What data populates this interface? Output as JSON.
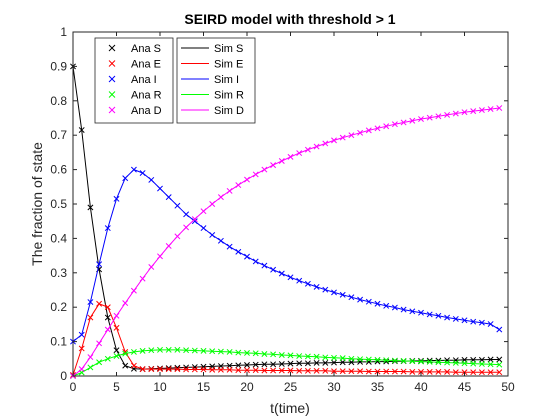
{
  "chart_data": {
    "type": "line",
    "title": "SEIRD model with threshold > 1",
    "xlabel": "t(time)",
    "ylabel": "The fraction of state",
    "xlim": [
      0,
      50
    ],
    "ylim": [
      0,
      1
    ],
    "xticks": [
      0,
      5,
      10,
      15,
      20,
      25,
      30,
      35,
      40,
      45,
      50
    ],
    "yticks": [
      0,
      0.1,
      0.2,
      0.3,
      0.4,
      0.5,
      0.6,
      0.7,
      0.8,
      0.9,
      1
    ],
    "xtick_labels": [
      "0",
      "5",
      "10",
      "15",
      "20",
      "25",
      "30",
      "35",
      "40",
      "45",
      "50"
    ],
    "ytick_labels": [
      "0",
      "0.1",
      "0.2",
      "0.3",
      "0.4",
      "0.5",
      "0.6",
      "0.7",
      "0.8",
      "0.9",
      "1"
    ],
    "grid": false,
    "legend_placement": "top-left",
    "x": [
      0,
      1,
      2,
      3,
      4,
      5,
      6,
      7,
      8,
      9,
      10,
      11,
      12,
      13,
      14,
      15,
      16,
      17,
      18,
      19,
      20,
      21,
      22,
      23,
      24,
      25,
      26,
      27,
      28,
      29,
      30,
      31,
      32,
      33,
      34,
      35,
      36,
      37,
      38,
      39,
      40,
      41,
      42,
      43,
      44,
      45,
      46,
      47,
      48,
      49
    ],
    "series": [
      {
        "name": "S",
        "color": "#000000",
        "values": [
          0.9,
          0.715,
          0.49,
          0.31,
          0.17,
          0.075,
          0.03,
          0.021,
          0.02,
          0.021,
          0.022,
          0.023,
          0.024,
          0.025,
          0.026,
          0.027,
          0.028,
          0.029,
          0.03,
          0.031,
          0.032,
          0.033,
          0.034,
          0.034,
          0.035,
          0.036,
          0.037,
          0.037,
          0.038,
          0.038,
          0.039,
          0.04,
          0.04,
          0.041,
          0.041,
          0.042,
          0.042,
          0.043,
          0.043,
          0.044,
          0.044,
          0.045,
          0.045,
          0.046,
          0.046,
          0.047,
          0.047,
          0.047,
          0.048,
          0.048
        ]
      },
      {
        "name": "E",
        "color": "#ff0000",
        "values": [
          0.003,
          0.08,
          0.17,
          0.21,
          0.2,
          0.14,
          0.07,
          0.03,
          0.02,
          0.02,
          0.02,
          0.02,
          0.02,
          0.019,
          0.019,
          0.019,
          0.018,
          0.018,
          0.018,
          0.017,
          0.017,
          0.017,
          0.016,
          0.016,
          0.016,
          0.016,
          0.015,
          0.015,
          0.015,
          0.015,
          0.014,
          0.014,
          0.014,
          0.014,
          0.013,
          0.013,
          0.013,
          0.013,
          0.013,
          0.012,
          0.012,
          0.012,
          0.012,
          0.012,
          0.011,
          0.011,
          0.011,
          0.011,
          0.011,
          0.011
        ]
      },
      {
        "name": "I",
        "color": "#0000ff",
        "values": [
          0.1,
          0.12,
          0.215,
          0.325,
          0.43,
          0.515,
          0.575,
          0.6,
          0.59,
          0.57,
          0.545,
          0.52,
          0.495,
          0.47,
          0.45,
          0.43,
          0.41,
          0.393,
          0.376,
          0.361,
          0.347,
          0.333,
          0.321,
          0.309,
          0.298,
          0.287,
          0.277,
          0.268,
          0.259,
          0.251,
          0.243,
          0.236,
          0.229,
          0.222,
          0.216,
          0.21,
          0.204,
          0.199,
          0.193,
          0.188,
          0.184,
          0.179,
          0.175,
          0.17,
          0.166,
          0.162,
          0.158,
          0.155,
          0.151,
          0.135
        ]
      },
      {
        "name": "R",
        "color": "#00ff00",
        "values": [
          0.0,
          0.01,
          0.025,
          0.04,
          0.05,
          0.058,
          0.065,
          0.07,
          0.073,
          0.075,
          0.076,
          0.076,
          0.076,
          0.075,
          0.074,
          0.073,
          0.072,
          0.071,
          0.07,
          0.068,
          0.067,
          0.066,
          0.064,
          0.063,
          0.061,
          0.06,
          0.058,
          0.057,
          0.056,
          0.054,
          0.053,
          0.052,
          0.05,
          0.049,
          0.048,
          0.047,
          0.046,
          0.045,
          0.044,
          0.043,
          0.042,
          0.041,
          0.04,
          0.039,
          0.038,
          0.037,
          0.036,
          0.035,
          0.034,
          0.033
        ]
      },
      {
        "name": "D",
        "color": "#ff00ff",
        "values": [
          0.0,
          0.02,
          0.055,
          0.095,
          0.135,
          0.175,
          0.212,
          0.248,
          0.283,
          0.317,
          0.348,
          0.378,
          0.406,
          0.432,
          0.456,
          0.479,
          0.5,
          0.52,
          0.538,
          0.555,
          0.571,
          0.586,
          0.6,
          0.613,
          0.625,
          0.637,
          0.648,
          0.658,
          0.667,
          0.676,
          0.685,
          0.693,
          0.7,
          0.707,
          0.714,
          0.72,
          0.726,
          0.732,
          0.737,
          0.742,
          0.747,
          0.751,
          0.755,
          0.759,
          0.763,
          0.767,
          0.77,
          0.773,
          0.776,
          0.779
        ]
      }
    ],
    "legend_markers": [
      "Ana S",
      "Ana E",
      "Ana I",
      "Ana R",
      "Ana D"
    ],
    "legend_lines": [
      "Sim S",
      "Sim E",
      "Sim I",
      "Sim R",
      "Sim D"
    ]
  }
}
